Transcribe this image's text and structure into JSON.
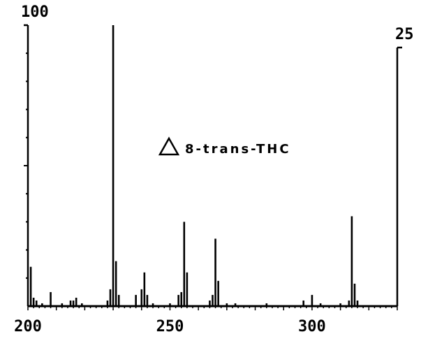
{
  "chart_data": {
    "type": "bar",
    "title": "",
    "xlabel": "",
    "ylabel": "",
    "annotation": "8-trans-THC",
    "annotation_symbol": "triangle",
    "xlim": [
      200,
      330
    ],
    "ylim": [
      0,
      100
    ],
    "x_ticks": [
      200,
      250,
      300
    ],
    "y_left_top_label": "100",
    "y_right_top_label": "25",
    "bar_color": "#000000",
    "peaks": [
      {
        "x": 201,
        "y": 14
      },
      {
        "x": 202,
        "y": 3
      },
      {
        "x": 203,
        "y": 2
      },
      {
        "x": 205,
        "y": 1
      },
      {
        "x": 208,
        "y": 5
      },
      {
        "x": 212,
        "y": 1
      },
      {
        "x": 215,
        "y": 2
      },
      {
        "x": 216,
        "y": 2
      },
      {
        "x": 217,
        "y": 3
      },
      {
        "x": 219,
        "y": 1
      },
      {
        "x": 228,
        "y": 2
      },
      {
        "x": 229,
        "y": 6
      },
      {
        "x": 230,
        "y": 100
      },
      {
        "x": 231,
        "y": 16
      },
      {
        "x": 232,
        "y": 4
      },
      {
        "x": 238,
        "y": 4
      },
      {
        "x": 240,
        "y": 6
      },
      {
        "x": 241,
        "y": 12
      },
      {
        "x": 242,
        "y": 4
      },
      {
        "x": 244,
        "y": 1
      },
      {
        "x": 250,
        "y": 1
      },
      {
        "x": 253,
        "y": 4
      },
      {
        "x": 254,
        "y": 5
      },
      {
        "x": 255,
        "y": 30
      },
      {
        "x": 256,
        "y": 12
      },
      {
        "x": 264,
        "y": 2
      },
      {
        "x": 265,
        "y": 4
      },
      {
        "x": 266,
        "y": 24
      },
      {
        "x": 267,
        "y": 9
      },
      {
        "x": 270,
        "y": 1
      },
      {
        "x": 273,
        "y": 1
      },
      {
        "x": 284,
        "y": 1
      },
      {
        "x": 297,
        "y": 2
      },
      {
        "x": 300,
        "y": 4
      },
      {
        "x": 303,
        "y": 1
      },
      {
        "x": 310,
        "y": 1
      },
      {
        "x": 313,
        "y": 2
      },
      {
        "x": 314,
        "y": 32
      },
      {
        "x": 315,
        "y": 8
      },
      {
        "x": 316,
        "y": 2
      }
    ]
  }
}
